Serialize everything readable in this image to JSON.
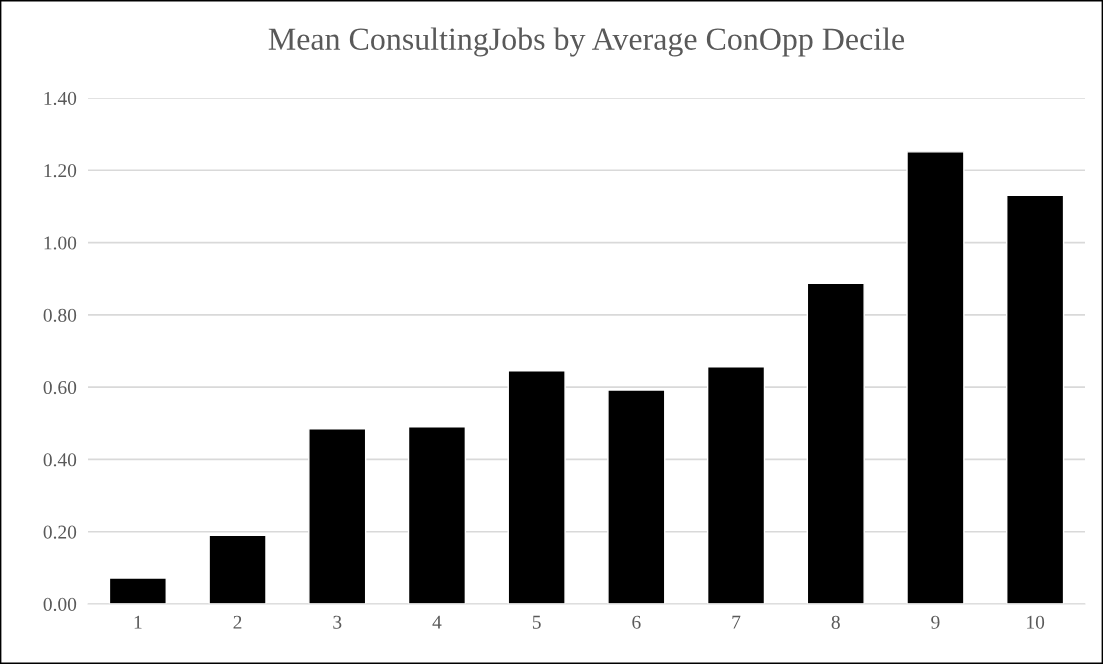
{
  "chart_data": {
    "type": "bar",
    "title": "Mean ConsultingJobs by Average ConOpp Decile",
    "categories": [
      "1",
      "2",
      "3",
      "4",
      "5",
      "6",
      "7",
      "8",
      "9",
      "10"
    ],
    "values": [
      0.072,
      0.19,
      0.485,
      0.49,
      0.645,
      0.592,
      0.656,
      0.887,
      1.251,
      1.131
    ],
    "color": "#000000",
    "ylim": [
      0,
      1.4
    ],
    "yticks": [
      {
        "value": 0,
        "label": "0.00"
      },
      {
        "value": 0.2,
        "label": "0.20"
      },
      {
        "value": 0.4,
        "label": "0.40"
      },
      {
        "value": 0.6,
        "label": "0.60"
      },
      {
        "value": 0.8,
        "label": "0.80"
      },
      {
        "value": 1.0,
        "label": "1.00"
      },
      {
        "value": 1.2,
        "label": "1.20"
      },
      {
        "value": 1.4,
        "label": "1.40"
      }
    ],
    "grid": "y",
    "legend": false
  }
}
